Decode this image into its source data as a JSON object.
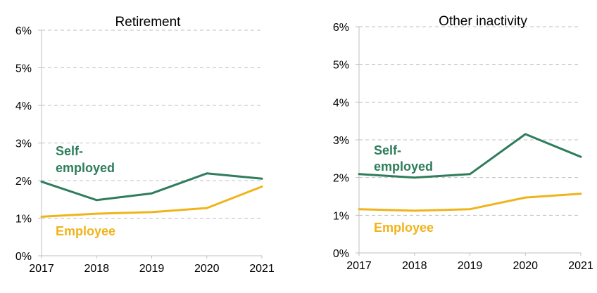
{
  "colors": {
    "self_employed": "#2e7d5b",
    "employee": "#f0b31a",
    "grid": "#bfbfbf",
    "axis": "#bfbfbf"
  },
  "chart_data": [
    {
      "type": "line",
      "title": "Retirement",
      "x": [
        "2017",
        "2018",
        "2019",
        "2020",
        "2021"
      ],
      "ylim": [
        0,
        6
      ],
      "yticks": [
        "0%",
        "1%",
        "2%",
        "3%",
        "4%",
        "5%",
        "6%"
      ],
      "series": [
        {
          "name_line1": "Self-",
          "name_line2": "employed",
          "key": "self_employed",
          "values": [
            1.97,
            1.48,
            1.66,
            2.19,
            2.05
          ]
        },
        {
          "name_line1": "Employee",
          "key": "employee",
          "values": [
            1.04,
            1.12,
            1.16,
            1.27,
            1.84
          ]
        }
      ]
    },
    {
      "type": "line",
      "title": "Other inactivity",
      "x": [
        "2017",
        "2018",
        "2019",
        "2020",
        "2021"
      ],
      "ylim": [
        0,
        6
      ],
      "yticks": [
        "0%",
        "1%",
        "2%",
        "3%",
        "4%",
        "5%",
        "6%"
      ],
      "series": [
        {
          "name_line1": "Self-",
          "name_line2": "employed",
          "key": "self_employed",
          "values": [
            2.09,
            2.0,
            2.09,
            3.15,
            2.55
          ]
        },
        {
          "name_line1": "Employee",
          "key": "employee",
          "values": [
            1.16,
            1.12,
            1.16,
            1.47,
            1.57
          ]
        }
      ]
    }
  ]
}
